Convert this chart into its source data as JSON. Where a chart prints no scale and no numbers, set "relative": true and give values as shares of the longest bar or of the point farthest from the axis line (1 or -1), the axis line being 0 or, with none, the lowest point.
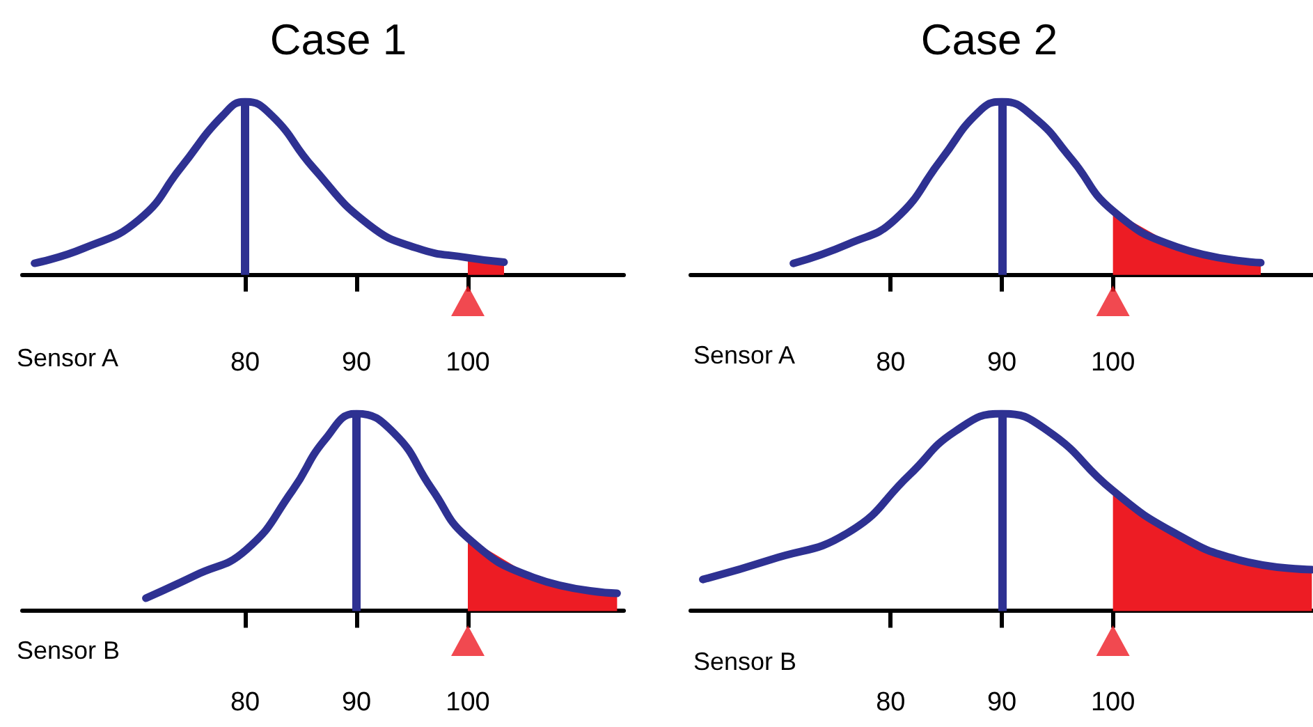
{
  "chart_data": [
    {
      "type": "line",
      "title": "Case 1",
      "xlabel": "Sensor A",
      "relative": true,
      "xlim": [
        60,
        114
      ],
      "xticks": [
        80,
        90,
        100
      ],
      "tick_labels": "x",
      "grid": false,
      "marker": "none",
      "line_style": "solid",
      "ref_lines": [
        {
          "axis": "x",
          "value": 80,
          "color": "#2e3192"
        }
      ],
      "series": [
        {
          "type": "line",
          "color": "#2e3192",
          "x": [
            61.1,
            65.5,
            70.5,
            74.25,
            78,
            80,
            82.4,
            86.1,
            91.1,
            95.5,
            99.9,
            103.25
          ],
          "values": [
            0.067,
            0.153,
            0.32,
            0.62,
            0.92,
            1,
            0.92,
            0.62,
            0.29,
            0.153,
            0.1,
            0.073
          ]
        },
        {
          "type": "area",
          "color": "#ed1c24",
          "x": [
            100,
            103.25
          ],
          "values": [
            0.1,
            0.073
          ]
        },
        {
          "type": "scatter",
          "marker": "triangle",
          "color": "#ed1c24",
          "x": [
            100
          ],
          "values": [
            -0.15
          ]
        }
      ]
    },
    {
      "type": "line",
      "title": "Case 2",
      "xlabel": "Sensor A",
      "relative": true,
      "xlim": [
        62,
        118
      ],
      "xticks": [
        80,
        90,
        100
      ],
      "tick_labels": "x",
      "grid": false,
      "marker": "none",
      "line_style": "solid",
      "ref_lines": [
        {
          "axis": "x",
          "value": 90,
          "color": "#2e3192"
        }
      ],
      "series": [
        {
          "type": "line",
          "color": "#2e3192",
          "x": [
            71.25,
            76.25,
            80.4,
            84.6,
            87.9,
            90,
            92.9,
            96.25,
            100,
            105.8,
            113.3
          ],
          "values": [
            0.066,
            0.18,
            0.32,
            0.67,
            0.94,
            1,
            0.91,
            0.67,
            0.37,
            0.16,
            0.07
          ]
        },
        {
          "type": "area",
          "color": "#ed1c24",
          "x": [
            100,
            105.8,
            113.3
          ],
          "values": [
            0.37,
            0.16,
            0.07
          ]
        },
        {
          "type": "scatter",
          "marker": "triangle",
          "color": "#ed1c24",
          "x": [
            100
          ],
          "values": [
            -0.15
          ]
        }
      ]
    },
    {
      "type": "line",
      "xlabel": "Sensor B",
      "relative": true,
      "xlim": [
        60,
        114
      ],
      "xticks": [
        80,
        90,
        100
      ],
      "tick_labels": "x",
      "grid": false,
      "marker": "none",
      "line_style": "solid",
      "ref_lines": [
        {
          "axis": "x",
          "value": 90,
          "color": "#2e3192"
        }
      ],
      "series": [
        {
          "type": "line",
          "color": "#2e3192",
          "x": [
            71.1,
            75.5,
            80.1,
            84.25,
            87.2,
            90,
            93.4,
            96.75,
            100,
            105.9,
            113.4
          ],
          "values": [
            0.065,
            0.18,
            0.31,
            0.61,
            0.87,
            1,
            0.9,
            0.62,
            0.37,
            0.17,
            0.09
          ]
        },
        {
          "type": "area",
          "color": "#ed1c24",
          "x": [
            100,
            105.9,
            113.4
          ],
          "values": [
            0.37,
            0.17,
            0.09
          ]
        },
        {
          "type": "scatter",
          "marker": "triangle",
          "color": "#ed1c24",
          "x": [
            100
          ],
          "values": [
            -0.15
          ]
        }
      ]
    },
    {
      "type": "line",
      "xlabel": "Sensor B",
      "relative": true,
      "xlim": [
        62,
        118
      ],
      "xticks": [
        80,
        90,
        100
      ],
      "tick_labels": "x",
      "grid": false,
      "marker": "none",
      "line_style": "solid",
      "ref_lines": [
        {
          "axis": "x",
          "value": 90,
          "color": "#2e3192"
        }
      ],
      "series": [
        {
          "type": "line",
          "color": "#2e3192",
          "x": [
            63.1,
            69.2,
            76.25,
            81.7,
            85.8,
            90,
            94.2,
            100,
            105.4,
            111.25,
            117.9
          ],
          "values": [
            0.16,
            0.26,
            0.4,
            0.69,
            0.91,
            1,
            0.91,
            0.61,
            0.4,
            0.26,
            0.21
          ]
        },
        {
          "type": "area",
          "color": "#ed1c24",
          "x": [
            100,
            105.4,
            111.25,
            117.9
          ],
          "values": [
            0.61,
            0.4,
            0.26,
            0.21
          ]
        },
        {
          "type": "scatter",
          "marker": "triangle",
          "color": "#ed1c24",
          "x": [
            100
          ],
          "values": [
            -0.15
          ]
        }
      ]
    }
  ]
}
